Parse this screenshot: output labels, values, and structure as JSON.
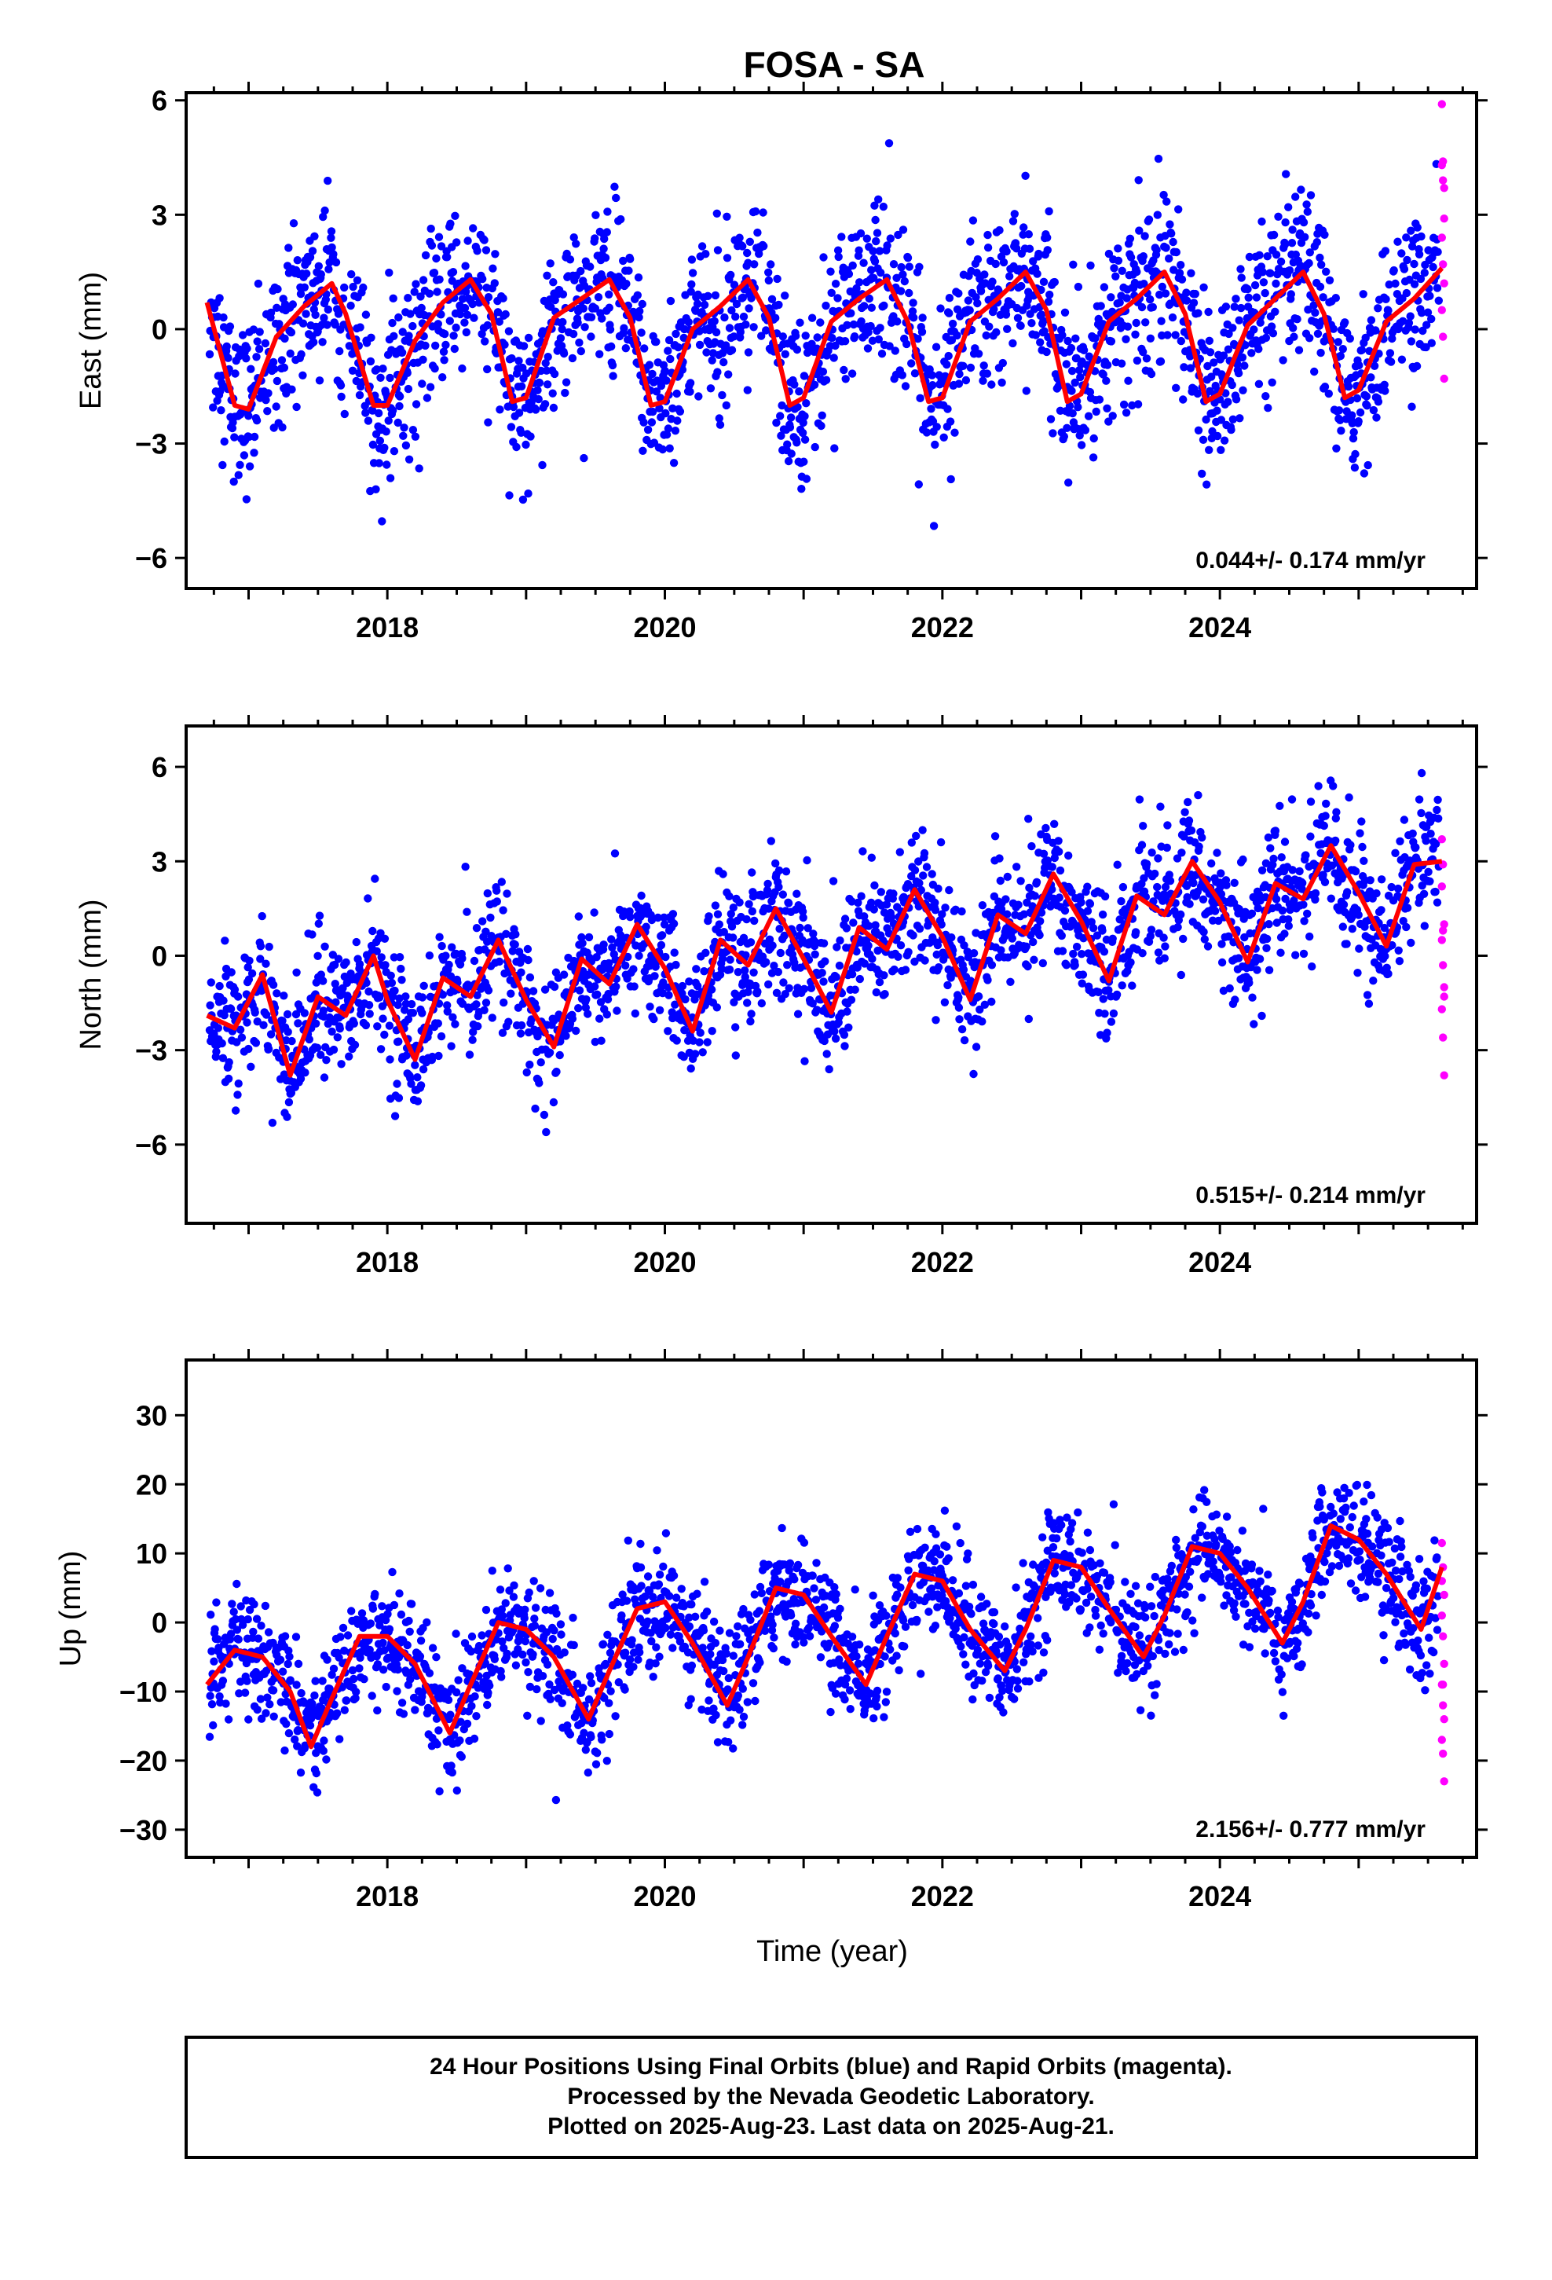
{
  "title": "FOSA - SA",
  "footer": {
    "line1": "24 Hour Positions Using Final Orbits (blue) and Rapid Orbits (magenta).",
    "line2": "Processed by the Nevada Geodetic Laboratory.",
    "line3": "Plotted on 2025-Aug-23. Last data on 2025-Aug-21."
  },
  "colors": {
    "final": "#0000ff",
    "rapid": "#ff00ff",
    "model": "#ff0000",
    "frame": "#000000"
  },
  "chart_data": [
    {
      "type": "scatter",
      "component": "east",
      "ylabel": "East (mm)",
      "xlabel": "",
      "xlim": [
        2016.55,
        2025.85
      ],
      "ylim": [
        -6.8,
        6.2
      ],
      "xticks": [
        2018,
        2020,
        2022,
        2024
      ],
      "yticks": [
        -6,
        -3,
        0,
        3,
        6
      ],
      "yticklabels": [
        "−6",
        "−3",
        "0",
        "3",
        "6"
      ],
      "rate_text": "0.044+/- 0.174 mm/yr",
      "model": {
        "x": [
          2016.7,
          2016.9,
          2017.0,
          2017.2,
          2017.4,
          2017.6,
          2017.7,
          2017.9,
          2018.0,
          2018.2,
          2018.4,
          2018.6,
          2018.75,
          2018.9,
          2019.0,
          2019.2,
          2019.4,
          2019.6,
          2019.75,
          2019.9,
          2020.0,
          2020.2,
          2020.4,
          2020.6,
          2020.75,
          2020.9,
          2021.0,
          2021.2,
          2021.4,
          2021.6,
          2021.75,
          2021.9,
          2022.0,
          2022.2,
          2022.4,
          2022.6,
          2022.75,
          2022.9,
          2023.0,
          2023.2,
          2023.4,
          2023.6,
          2023.75,
          2023.9,
          2024.0,
          2024.2,
          2024.4,
          2024.6,
          2024.75,
          2024.9,
          2025.0,
          2025.2,
          2025.4,
          2025.6
        ],
        "y": [
          0.7,
          -2.0,
          -2.1,
          -0.2,
          0.6,
          1.2,
          0.4,
          -2.0,
          -2.0,
          -0.3,
          0.7,
          1.3,
          0.4,
          -1.9,
          -1.8,
          0.3,
          0.8,
          1.3,
          0.3,
          -2.0,
          -1.9,
          0.0,
          0.6,
          1.3,
          0.3,
          -2.0,
          -1.8,
          0.2,
          0.8,
          1.3,
          0.2,
          -1.9,
          -1.8,
          0.2,
          0.8,
          1.5,
          0.5,
          -1.9,
          -1.7,
          0.2,
          0.8,
          1.5,
          0.4,
          -1.9,
          -1.7,
          0.1,
          0.8,
          1.5,
          0.4,
          -1.8,
          -1.6,
          0.2,
          0.8,
          1.6
        ]
      },
      "rapid_y": [
        5.9,
        4.4,
        3.7,
        2.4,
        1.7,
        1.2,
        0.5,
        -0.2,
        -1.3,
        4.3,
        3.9,
        2.9
      ]
    },
    {
      "type": "scatter",
      "component": "north",
      "ylabel": "North (mm)",
      "xlabel": "",
      "xlim": [
        2016.55,
        2025.85
      ],
      "ylim": [
        -8.5,
        7.3
      ],
      "xticks": [
        2018,
        2020,
        2022,
        2024
      ],
      "yticks": [
        -6,
        -3,
        0,
        3,
        6
      ],
      "yticklabels": [
        "−6",
        "−3",
        "0",
        "3",
        "6"
      ],
      "rate_text": "0.515+/- 0.214 mm/yr",
      "model": {
        "x": [
          2016.7,
          2016.9,
          2017.1,
          2017.3,
          2017.5,
          2017.7,
          2017.9,
          2018.0,
          2018.2,
          2018.4,
          2018.6,
          2018.8,
          2019.0,
          2019.2,
          2019.4,
          2019.6,
          2019.8,
          2020.0,
          2020.2,
          2020.4,
          2020.6,
          2020.8,
          2021.0,
          2021.2,
          2021.4,
          2021.6,
          2021.8,
          2022.0,
          2022.2,
          2022.4,
          2022.6,
          2022.8,
          2023.0,
          2023.2,
          2023.4,
          2023.6,
          2023.8,
          2024.0,
          2024.2,
          2024.4,
          2024.6,
          2024.8,
          2025.0,
          2025.2,
          2025.4,
          2025.6
        ],
        "y": [
          -1.9,
          -2.3,
          -0.6,
          -3.8,
          -1.3,
          -1.9,
          0.0,
          -1.4,
          -3.3,
          -0.7,
          -1.3,
          0.5,
          -1.4,
          -2.9,
          -0.1,
          -0.9,
          1.0,
          -0.4,
          -2.4,
          0.5,
          -0.3,
          1.5,
          -0.1,
          -1.8,
          0.9,
          0.2,
          2.1,
          0.6,
          -1.4,
          1.3,
          0.7,
          2.6,
          1.1,
          -0.8,
          1.9,
          1.3,
          3.0,
          1.7,
          -0.2,
          2.3,
          1.8,
          3.5,
          2.0,
          0.3,
          2.9,
          3.0
        ]
      },
      "rapid_y": [
        3.7,
        2.9,
        1.0,
        0.5,
        -0.3,
        -1.0,
        -1.7,
        -2.6,
        -3.8,
        2.2,
        0.8,
        -1.3
      ]
    },
    {
      "type": "scatter",
      "component": "up",
      "ylabel": "Up (mm)",
      "xlabel": "Time (year)",
      "xlim": [
        2016.55,
        2025.85
      ],
      "ylim": [
        -34,
        38
      ],
      "xticks": [
        2018,
        2020,
        2022,
        2024
      ],
      "yticks": [
        -30,
        -20,
        -10,
        0,
        10,
        20,
        30
      ],
      "yticklabels": [
        "−30",
        "−20",
        "−10",
        "0",
        "10",
        "20",
        "30"
      ],
      "rate_text": "2.156+/- 0.777 mm/yr",
      "model": {
        "x": [
          2016.7,
          2016.9,
          2017.1,
          2017.3,
          2017.45,
          2017.6,
          2017.8,
          2018.0,
          2018.2,
          2018.45,
          2018.6,
          2018.8,
          2019.0,
          2019.2,
          2019.45,
          2019.6,
          2019.8,
          2020.0,
          2020.2,
          2020.45,
          2020.6,
          2020.8,
          2021.0,
          2021.2,
          2021.45,
          2021.6,
          2021.8,
          2022.0,
          2022.2,
          2022.45,
          2022.6,
          2022.8,
          2023.0,
          2023.2,
          2023.45,
          2023.6,
          2023.8,
          2024.0,
          2024.2,
          2024.45,
          2024.6,
          2024.8,
          2025.0,
          2025.2,
          2025.45,
          2025.6
        ],
        "y": [
          -9,
          -4,
          -5,
          -10,
          -18,
          -11,
          -2,
          -2,
          -6,
          -16,
          -9,
          0,
          -1,
          -5,
          -14,
          -7,
          2,
          3,
          -3,
          -12,
          -5,
          5,
          4,
          -2,
          -9,
          -2,
          7,
          6,
          -1,
          -7,
          -1,
          9,
          8,
          2,
          -5,
          1,
          11,
          10,
          5,
          -3,
          3,
          14,
          12,
          7,
          -1,
          8
        ]
      },
      "rapid_y": [
        11.5,
        8,
        4,
        1,
        -2,
        -6,
        -9,
        -12,
        -14,
        -17,
        -19,
        -23,
        6,
        -9
      ]
    }
  ]
}
